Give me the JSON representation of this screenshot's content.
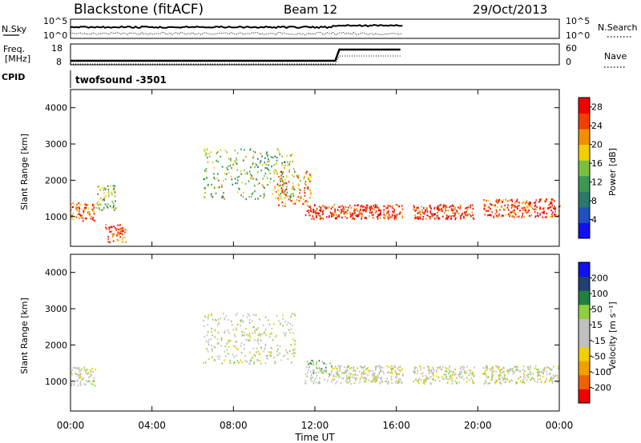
{
  "header": {
    "station": "Blackstone (fitACF)",
    "beam": "Beam 12",
    "date": "29/Oct/2013"
  },
  "status_panels": {
    "nsky_label": "N.Sky",
    "nsky_ticks": [
      "10^5",
      "10^0"
    ],
    "nsearch_label": "N.Search",
    "nsearch_ticks": [
      "10^5",
      "10^0"
    ],
    "freq_label": "Freq.",
    "freq_unit": "[MHz]",
    "freq_ticks": [
      "18",
      "8"
    ],
    "nave_label": "Nave",
    "nave_ticks": [
      "60",
      "0"
    ],
    "cpid_label": "CPID",
    "cpid_value": "twofsound  -3501"
  },
  "colors": {
    "power": [
      "#1010f0",
      "#2050c0",
      "#2a7a6a",
      "#3c9a50",
      "#7ac040",
      "#f0d000",
      "#f09000",
      "#f04000",
      "#f00000"
    ],
    "velocity": [
      "#f00000",
      "#f06000",
      "#f0a000",
      "#f0d000",
      "#c0c0c0",
      "#c0c0c0",
      "#90d040",
      "#208040",
      "#204070",
      "#1010f0"
    ]
  },
  "chart_data": [
    {
      "type": "heatmap",
      "title": "",
      "xlabel": "Time UT",
      "ylabel": "Slant Range [km]",
      "xlim": [
        "00:00",
        "24:00"
      ],
      "ylim": [
        180,
        4500
      ],
      "x_ticks": [
        "00:00",
        "04:00",
        "08:00",
        "12:00",
        "16:00",
        "20:00",
        "00:00"
      ],
      "y_ticks": [
        "1000",
        "2000",
        "3000",
        "4000"
      ],
      "colorbar": {
        "label": "Power [dB]",
        "range": [
          0,
          30
        ],
        "ticks": [
          "4",
          "8",
          "12",
          "16",
          "20",
          "24",
          "28"
        ]
      },
      "echo_regions": [
        {
          "t_start": 0.0,
          "t_end": 1.2,
          "range_km": [
            900,
            1400
          ],
          "value_db": 24
        },
        {
          "t_start": 1.2,
          "t_end": 2.2,
          "range_km": [
            1200,
            1900
          ],
          "value_db": 14
        },
        {
          "t_start": 1.7,
          "t_end": 2.7,
          "range_km": [
            300,
            800
          ],
          "value_db": 26
        },
        {
          "t_start": 6.5,
          "t_end": 11.0,
          "range_km": [
            1500,
            2900
          ],
          "value_db": 14
        },
        {
          "t_start": 10.0,
          "t_end": 11.8,
          "range_km": [
            1300,
            2300
          ],
          "value_db": 22
        },
        {
          "t_start": 11.5,
          "t_end": 16.3,
          "range_km": [
            950,
            1350
          ],
          "value_db": 27
        },
        {
          "t_start": 16.8,
          "t_end": 19.8,
          "range_km": [
            950,
            1350
          ],
          "value_db": 27
        },
        {
          "t_start": 20.2,
          "t_end": 24.0,
          "range_km": [
            1000,
            1500
          ],
          "value_db": 26
        }
      ]
    },
    {
      "type": "heatmap",
      "title": "",
      "xlabel": "Time UT",
      "ylabel": "Slant Range [km]",
      "xlim": [
        "00:00",
        "24:00"
      ],
      "ylim": [
        180,
        4500
      ],
      "x_ticks": [
        "00:00",
        "04:00",
        "08:00",
        "12:00",
        "16:00",
        "20:00",
        "00:00"
      ],
      "y_ticks": [
        "1000",
        "2000",
        "3000",
        "4000"
      ],
      "colorbar": {
        "label": "Velocity [m s⁻¹]",
        "range": [
          -250,
          250
        ],
        "ticks": [
          "200",
          "100",
          "50",
          "15",
          "-15",
          "-50",
          "-100",
          "-200"
        ]
      },
      "echo_regions": [
        {
          "t_start": 0.0,
          "t_end": 1.2,
          "range_km": [
            900,
            1400
          ],
          "value_ms": 0
        },
        {
          "t_start": 6.5,
          "t_end": 11.0,
          "range_km": [
            1500,
            2900
          ],
          "value_ms": 10
        },
        {
          "t_start": 11.5,
          "t_end": 12.8,
          "range_km": [
            950,
            1600
          ],
          "value_ms": 40
        },
        {
          "t_start": 12.8,
          "t_end": 24.0,
          "range_km": [
            950,
            1450
          ],
          "value_ms": 0
        }
      ]
    }
  ]
}
